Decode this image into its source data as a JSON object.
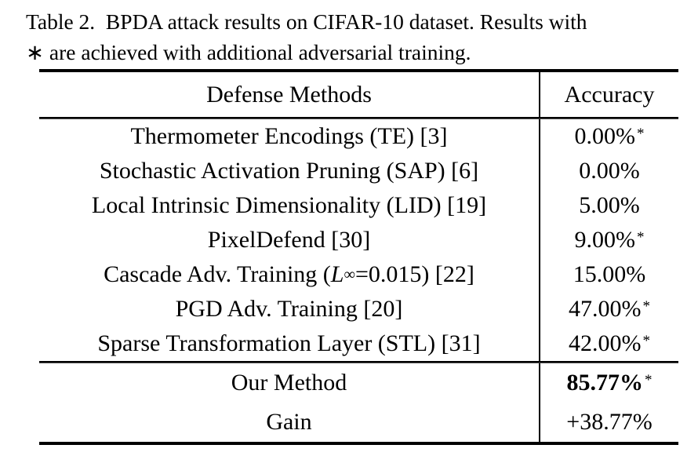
{
  "caption": {
    "lines": [
      "Table 2.  BPDA attack results on CIFAR-10 dataset. Results with",
      "∗ are achieved with additional adversarial training."
    ]
  },
  "table": {
    "columns": [
      "Defense Methods",
      "Accuracy"
    ],
    "star_symbol": "*",
    "rows": [
      {
        "method": "Thermometer Encodings (TE) [3]",
        "accuracy": "0.00%",
        "starred": true
      },
      {
        "method": "Stochastic Activation Pruning (SAP) [6]",
        "accuracy": "0.00%",
        "starred": false
      },
      {
        "method": "Local Intrinsic Dimensionality (LID) [19]",
        "accuracy": "5.00%",
        "starred": false
      },
      {
        "method": "PixelDefend [30]",
        "accuracy": "9.00%",
        "starred": true
      },
      {
        "method": "Cascade Adv. Training (L∞=0.015) [22]",
        "method_parts": [
          {
            "text": "Cascade Adv. Training ("
          },
          {
            "text": "L",
            "style": "italic"
          },
          {
            "text": "∞",
            "style": "subscript"
          },
          {
            "text": "=0.015) [22]"
          }
        ],
        "accuracy": "15.00%",
        "starred": false
      },
      {
        "method": "PGD Adv. Training [20]",
        "accuracy": "47.00%",
        "starred": true
      },
      {
        "method": "Sparse Transformation Layer (STL) [31]",
        "accuracy": "42.00%",
        "starred": true
      }
    ],
    "summary_rows": [
      {
        "method": "Our Method",
        "accuracy": "85.77%",
        "starred": true,
        "bold": true
      },
      {
        "method": "Gain",
        "accuracy": "+38.77%",
        "starred": false,
        "bold": false
      }
    ]
  },
  "colors": {
    "text": "#000000",
    "background": "#ffffff"
  }
}
